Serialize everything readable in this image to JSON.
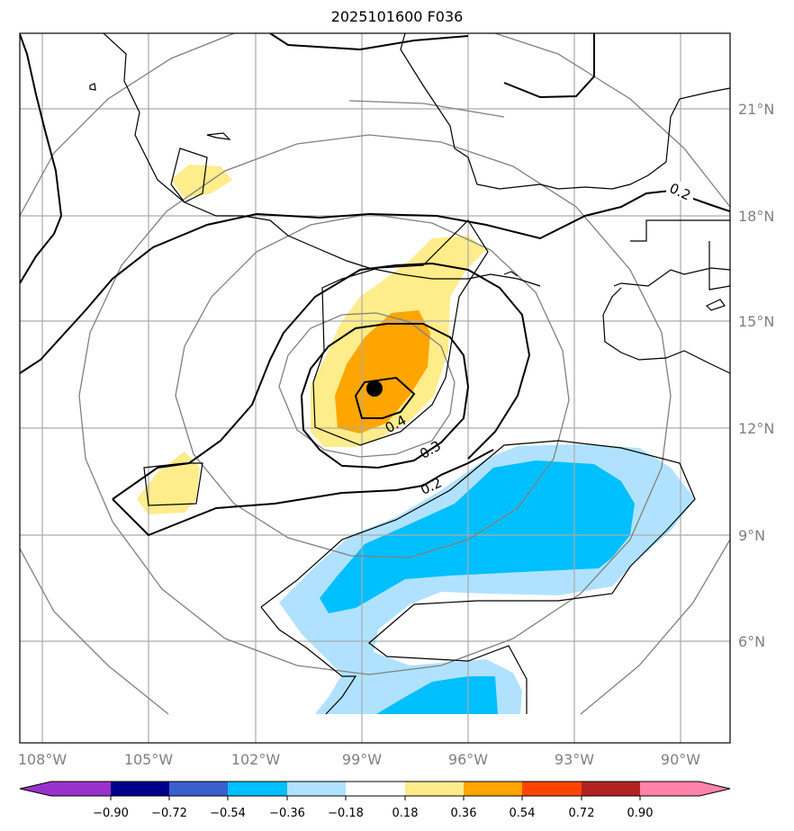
{
  "title": "2025101600 F036",
  "map": {
    "lon_labels": [
      "108°W",
      "105°W",
      "102°W",
      "99°W",
      "96°W",
      "93°W",
      "90°W"
    ],
    "lat_labels": [
      "21°N",
      "18°N",
      "15°N",
      "12°N",
      "9°N",
      "6°N"
    ],
    "contour_labels": [
      "0.2",
      "0.4",
      "0.3",
      "0.2"
    ],
    "center_marker": "storm-center",
    "range_ring_color": "#808080",
    "contour_color": "#000000"
  },
  "colorbar": {
    "tick_labels": [
      "−0.90",
      "−0.72",
      "−0.54",
      "−0.36",
      "−0.18",
      "0.18",
      "0.36",
      "0.54",
      "0.72",
      "0.90"
    ],
    "colors": [
      "#9932cc",
      "#00008b",
      "#3a5fcd",
      "#00bfff",
      "#b0e2ff",
      "#ffffff",
      "#ffec8b",
      "#ffa500",
      "#ff4500",
      "#b22222",
      "#ff82ab"
    ]
  }
}
